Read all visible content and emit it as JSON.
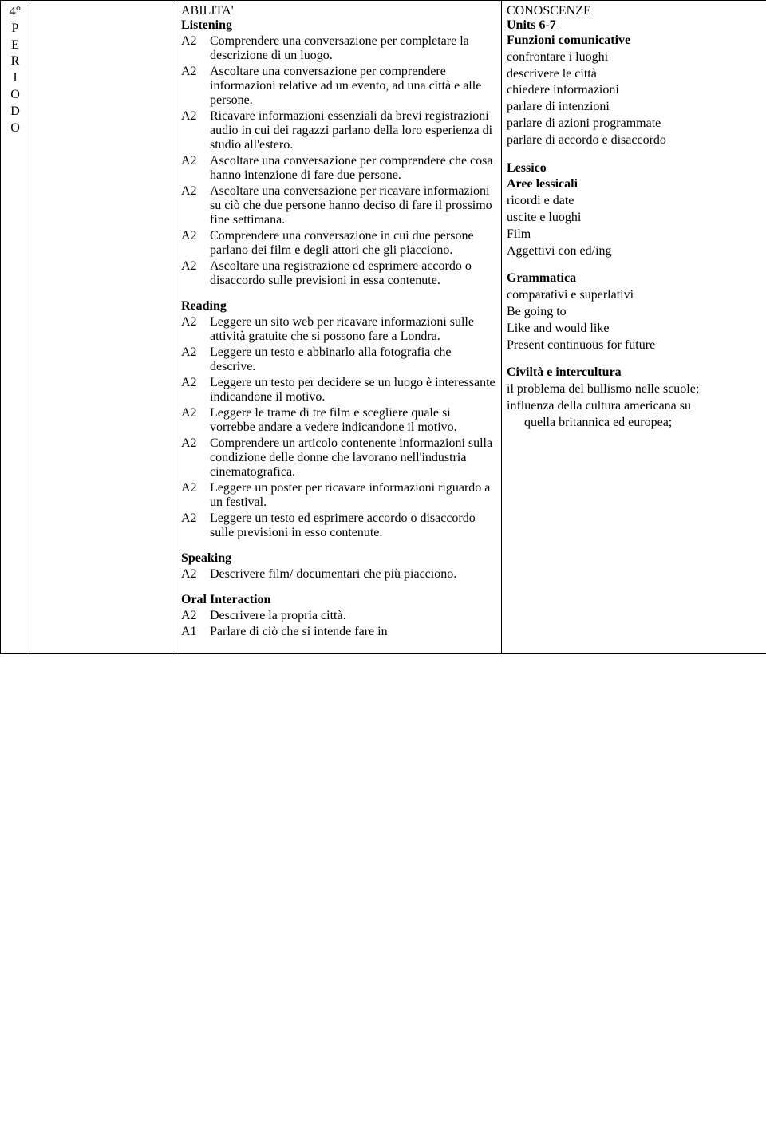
{
  "periodo_label": "4° P E R I O D O",
  "abilita": {
    "title": "ABILITA'",
    "listening": {
      "heading": "Listening",
      "items": [
        {
          "level": "A2",
          "text": "Comprendere una conversazione per completare la descrizione di un luogo."
        },
        {
          "level": "A2",
          "text": "Ascoltare una conversazione per comprendere informazioni relative ad un evento, ad una città e alle persone."
        },
        {
          "level": "A2",
          "text": "Ricavare informazioni essenziali da brevi registrazioni audio in cui dei ragazzi parlano della loro esperienza di studio all'estero."
        },
        {
          "level": "A2",
          "text": "Ascoltare una conversazione per comprendere che cosa hanno intenzione di fare due persone."
        },
        {
          "level": "A2",
          "text": "Ascoltare una conversazione per ricavare informazioni su ciò che due persone hanno deciso di fare il prossimo fine settimana."
        },
        {
          "level": "A2",
          "text": "Comprendere una conversazione in cui due persone parlano dei film e degli attori che gli piacciono."
        },
        {
          "level": "A2",
          "text": "Ascoltare una registrazione ed esprimere accordo o disaccordo sulle previsioni in essa contenute."
        }
      ]
    },
    "reading": {
      "heading": "Reading",
      "items": [
        {
          "level": "A2",
          "text": "Leggere un sito web per ricavare informazioni sulle attività gratuite che si possono fare a Londra."
        },
        {
          "level": "A2",
          "text": "Leggere un testo e abbinarlo alla fotografia che descrive."
        },
        {
          "level": "A2",
          "text": "Leggere un testo per decidere se un luogo è interessante indicandone il motivo."
        },
        {
          "level": "A2",
          "text": "Leggere le trame di tre film e scegliere quale si vorrebbe andare a vedere indicandone il motivo."
        },
        {
          "level": "A2",
          "text": "Comprendere un articolo contenente informazioni sulla condizione delle donne che lavorano nell'industria cinematografica."
        },
        {
          "level": "A2",
          "text": "Leggere un poster per ricavare informazioni riguardo a un festival."
        },
        {
          "level": "A2",
          "text": "Leggere un testo ed esprimere accordo o disaccordo sulle previsioni in esso contenute."
        }
      ]
    },
    "speaking": {
      "heading": "Speaking",
      "items": [
        {
          "level": "A2",
          "text": "Descrivere film/ documentari che più piacciono."
        }
      ]
    },
    "oral_interaction": {
      "heading": "Oral Interaction",
      "items": [
        {
          "level": "A2",
          "text": "Descrivere la propria città."
        },
        {
          "level": "A1",
          "text": "Parlare di ciò che si intende fare in"
        }
      ]
    }
  },
  "conoscenze": {
    "title": "CONOSCENZE",
    "units_label": "Units 6-7",
    "funzioni": {
      "heading": "Funzioni comunicative",
      "items": [
        "confrontare i luoghi",
        "descrivere le città",
        "chiedere informazioni",
        "parlare di intenzioni",
        "parlare di azioni programmate",
        "parlare di accordo e disaccordo"
      ]
    },
    "lessico": {
      "heading": "Lessico",
      "subheading": "Aree lessicali",
      "items": [
        "ricordi e date",
        "uscite e luoghi",
        "Film",
        "Aggettivi con ed/ing"
      ]
    },
    "grammatica": {
      "heading": "Grammatica",
      "items": [
        "comparativi e superlativi",
        "Be going to",
        "Like and would like",
        "Present continuous for future"
      ]
    },
    "civilta": {
      "heading": "Civiltà e intercultura",
      "items": [
        "il problema del bullismo nelle scuole;",
        "influenza della cultura americana su quella britannica ed europea;"
      ]
    }
  }
}
